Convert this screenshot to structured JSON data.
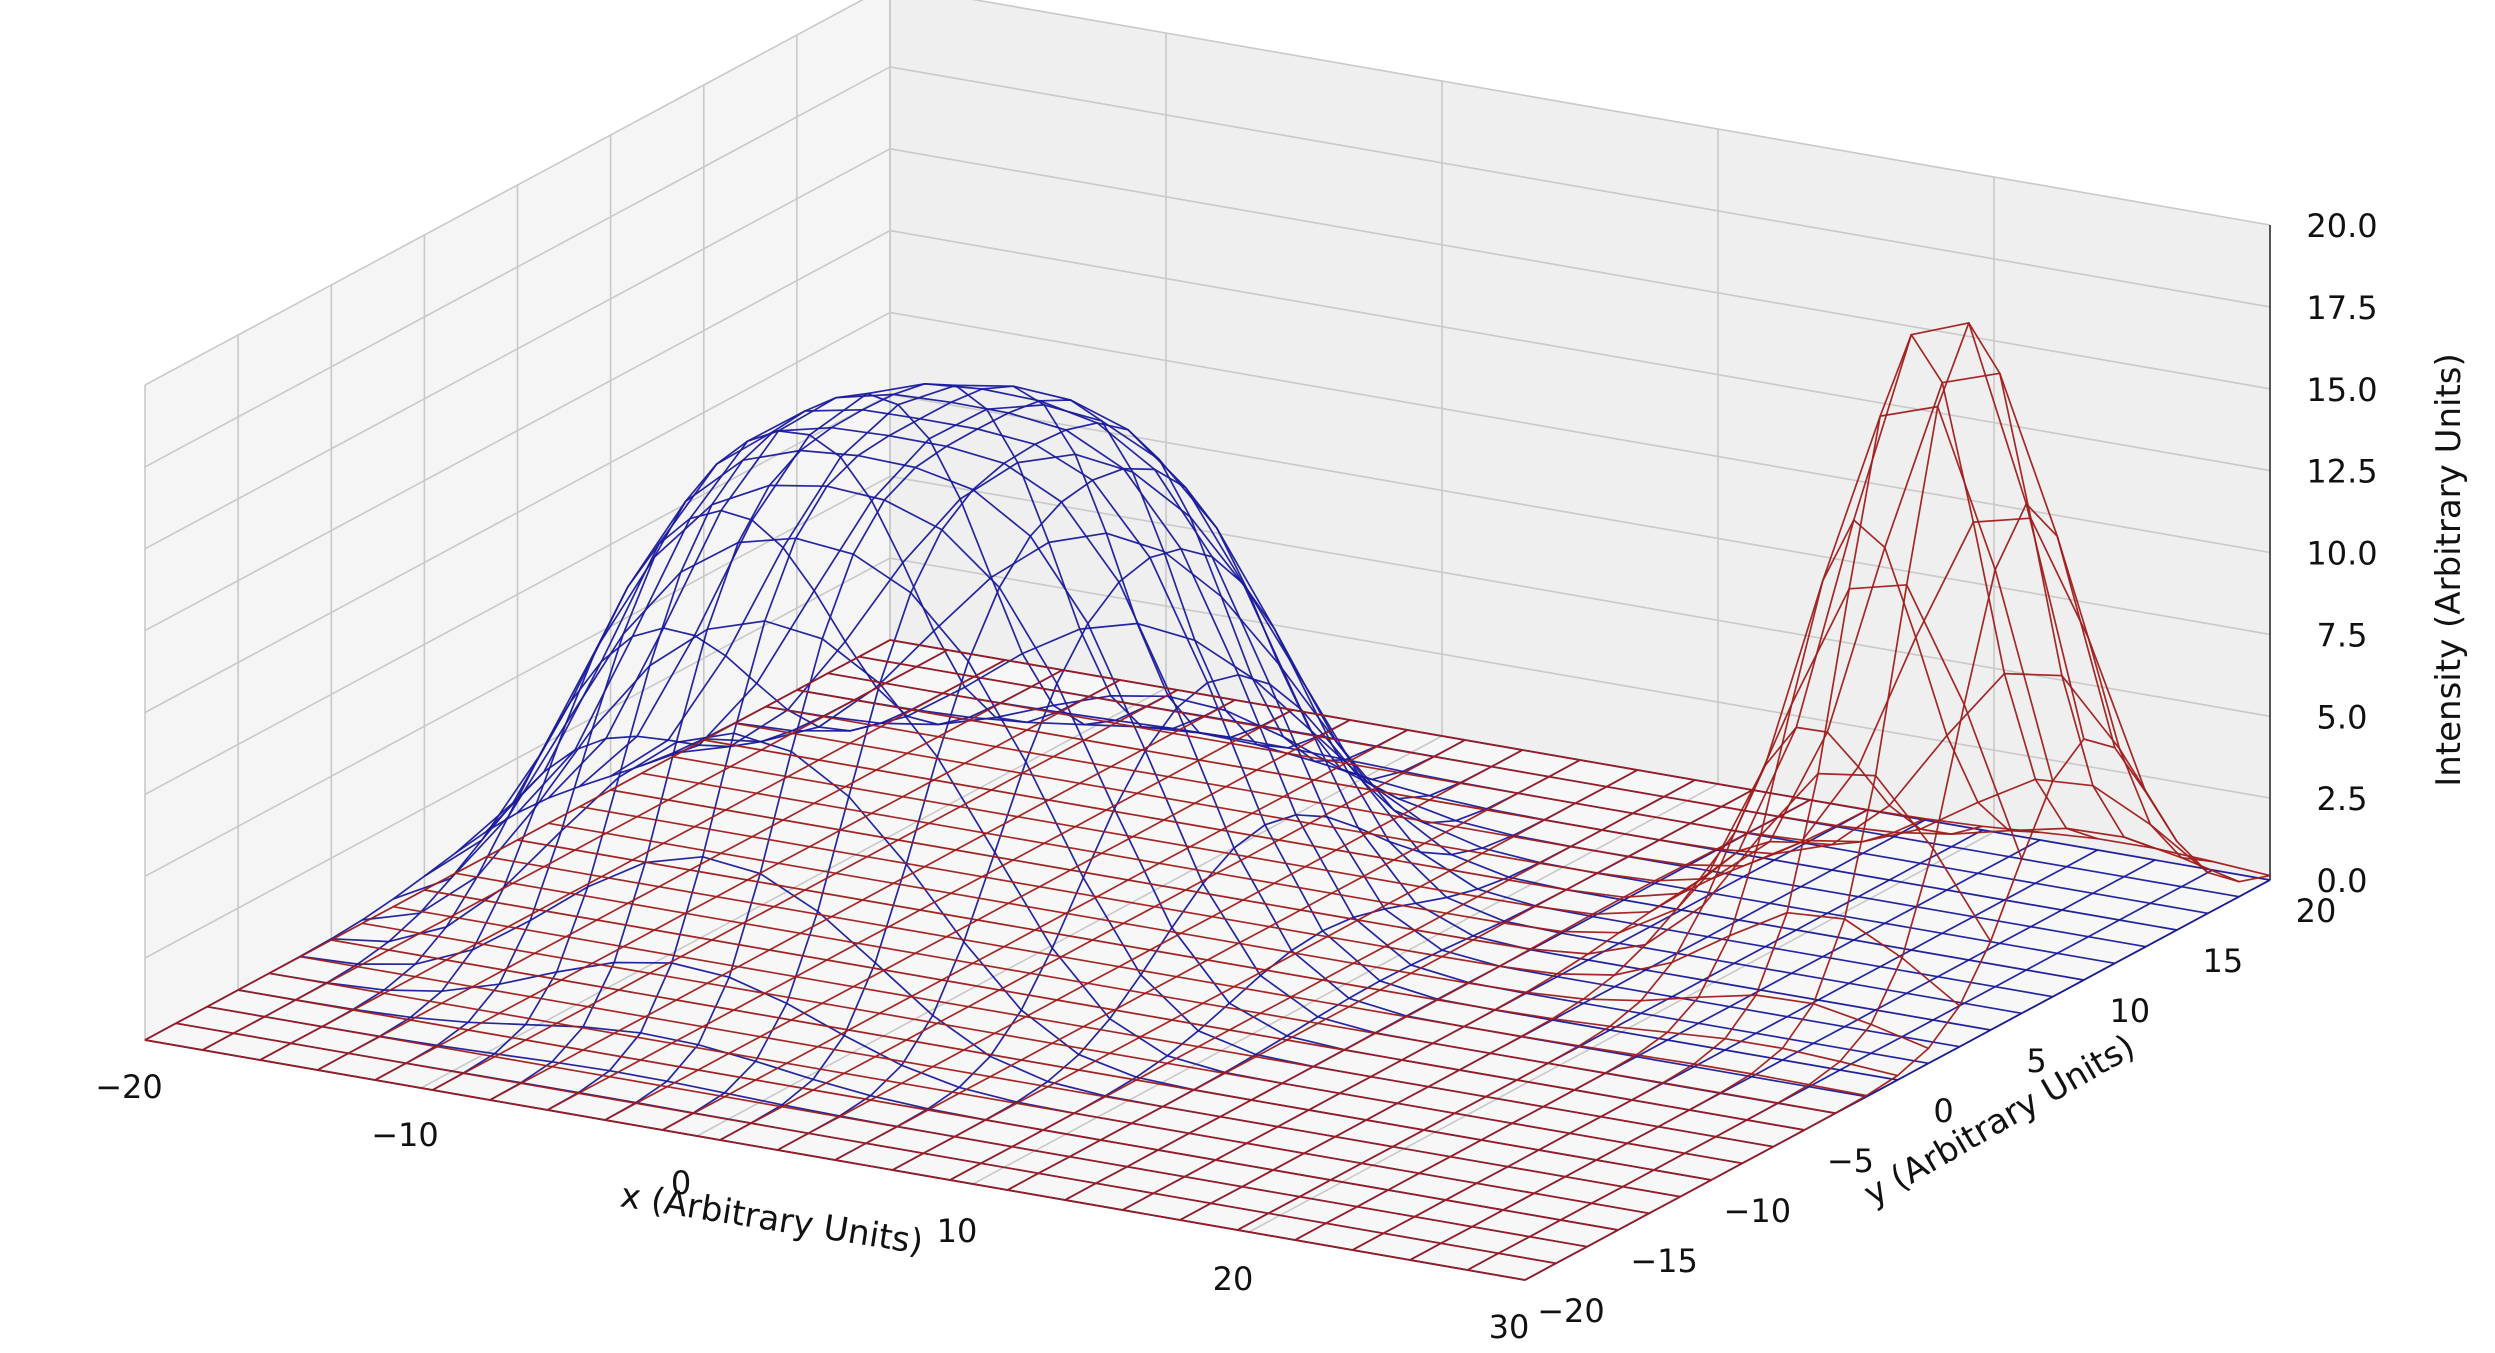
{
  "chart_data": {
    "type": "wireframe-3d",
    "xlabel": "x (Arbitrary Units)",
    "ylabel": "y (Arbitrary Units)",
    "zlabel": "Intensity (Arbitrary Units)",
    "xlim": [
      -20,
      30
    ],
    "ylim": [
      -20,
      20
    ],
    "zlim": [
      0,
      20
    ],
    "x_ticks": [
      -20,
      -10,
      0,
      10,
      20,
      30
    ],
    "y_ticks": [
      -20,
      -15,
      -10,
      -5,
      0,
      5,
      10,
      15,
      20
    ],
    "z_ticks": [
      "0.0",
      "2.5",
      "5.0",
      "7.5",
      "10.0",
      "12.5",
      "15.0",
      "17.5",
      "20.0"
    ],
    "grid": true,
    "grid_samples": 25,
    "series": [
      {
        "shape": "super-gaussian (flat-top) peak",
        "color": "#1a1a9c",
        "center": [
          -5,
          0
        ],
        "peak": 15.0,
        "width": 11.5,
        "order": 4
      },
      {
        "shape": "gaussian peak",
        "color": "#a01c1c",
        "center": [
          25,
          10
        ],
        "peak": 20.0,
        "width": 5.0,
        "order": 2
      }
    ]
  }
}
